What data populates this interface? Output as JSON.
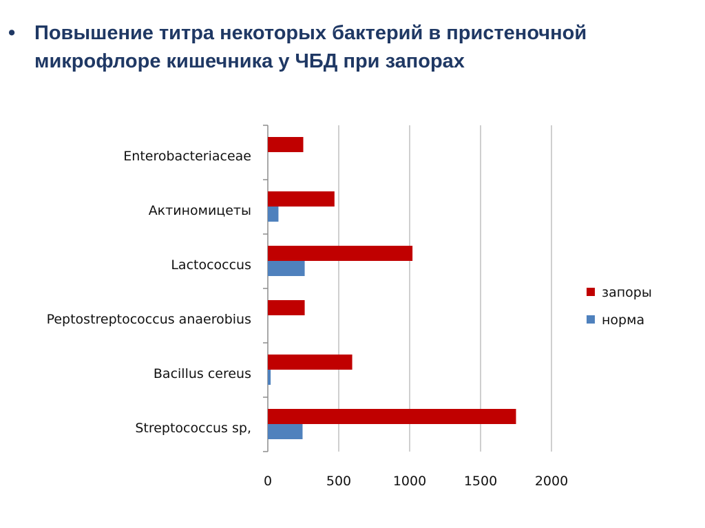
{
  "slide": {
    "bullet": "•",
    "title": "Повышение титра некоторых бактерий в пристеночной микрофлоре кишечника у ЧБД  при запорах"
  },
  "colors": {
    "title": "#1f3864",
    "zapory": "#c00000",
    "norma": "#4f81bd",
    "grid": "#bfbfbf"
  },
  "chart_data": {
    "type": "bar",
    "orientation": "horizontal",
    "categories": [
      "Enterobacteriaceae",
      "Актиномицеты",
      "Lactococcus",
      "Peptostreptococcus anaerobius",
      "Bacillus cereus",
      "Streptococcus sp,"
    ],
    "series": [
      {
        "name": "запоры",
        "values": [
          250,
          470,
          1020,
          260,
          595,
          1750
        ]
      },
      {
        "name": "норма",
        "values": [
          0,
          75,
          260,
          0,
          20,
          245
        ]
      }
    ],
    "xlim": [
      0,
      2000
    ],
    "xticks": [
      0,
      500,
      1000,
      1500,
      2000
    ],
    "grid": "vertical",
    "legend_position": "right"
  }
}
